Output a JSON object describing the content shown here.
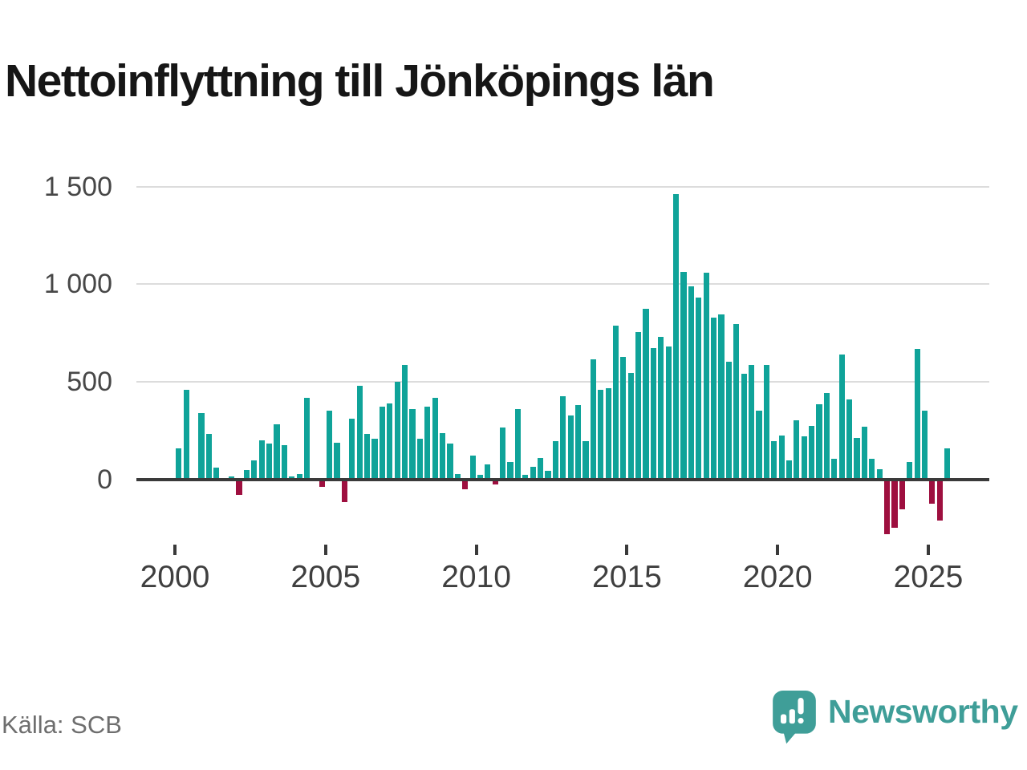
{
  "title": "Nettoinflyttning till Jönköpings län",
  "source": "Källa: SCB",
  "brand": {
    "name": "Newsworthy",
    "color": "#3f9e98"
  },
  "colors": {
    "positive": "#0fa399",
    "negative": "#9e0f3f",
    "axis": "#3a3a3a",
    "grid": "#dcdcdc"
  },
  "chart_data": {
    "type": "bar",
    "title": "Nettoinflyttning till Jönköpings län",
    "x_unit": "quarter",
    "y_ticks": [
      0,
      500,
      1000,
      1500
    ],
    "y_tick_labels": [
      "0",
      "500",
      "1 000",
      "1 500"
    ],
    "x_tick_years": [
      "2000",
      "2005",
      "2010",
      "2015",
      "2020",
      "2025"
    ],
    "ylim": [
      -300,
      1500
    ],
    "grid": "horizontal",
    "legend": "none",
    "years": [
      {
        "year": 2000,
        "values": [
          160,
          460,
          0,
          340
        ]
      },
      {
        "year": 2001,
        "values": [
          235,
          60,
          0,
          15
        ]
      },
      {
        "year": 2002,
        "values": [
          -80,
          50,
          100,
          200
        ]
      },
      {
        "year": 2003,
        "values": [
          185,
          285,
          175,
          15
        ]
      },
      {
        "year": 2004,
        "values": [
          30,
          420,
          0,
          -35
        ]
      },
      {
        "year": 2005,
        "values": [
          355,
          190,
          -115,
          310
        ]
      },
      {
        "year": 2006,
        "values": [
          480,
          235,
          210,
          375
        ]
      },
      {
        "year": 2007,
        "values": [
          390,
          500,
          585,
          360
        ]
      },
      {
        "year": 2008,
        "values": [
          210,
          375,
          420,
          240
        ]
      },
      {
        "year": 2009,
        "values": [
          185,
          30,
          -50,
          125
        ]
      },
      {
        "year": 2010,
        "values": [
          25,
          80,
          -25,
          265
        ]
      },
      {
        "year": 2011,
        "values": [
          90,
          360,
          25,
          65
        ]
      },
      {
        "year": 2012,
        "values": [
          110,
          45,
          195,
          425
        ]
      },
      {
        "year": 2013,
        "values": [
          330,
          380,
          195,
          615
        ]
      },
      {
        "year": 2014,
        "values": [
          460,
          470,
          790,
          630
        ]
      },
      {
        "year": 2015,
        "values": [
          545,
          755,
          875,
          675
        ]
      },
      {
        "year": 2016,
        "values": [
          730,
          680,
          1460,
          1065
        ]
      },
      {
        "year": 2017,
        "values": [
          990,
          930,
          1060,
          830
        ]
      },
      {
        "year": 2018,
        "values": [
          845,
          605,
          795,
          540
        ]
      },
      {
        "year": 2019,
        "values": [
          585,
          355,
          585,
          195
        ]
      },
      {
        "year": 2020,
        "values": [
          225,
          100,
          305,
          220
        ]
      },
      {
        "year": 2021,
        "values": [
          275,
          385,
          445,
          105
        ]
      },
      {
        "year": 2022,
        "values": [
          640,
          410,
          215,
          270
        ]
      },
      {
        "year": 2023,
        "values": [
          105,
          55,
          -280,
          -245
        ]
      },
      {
        "year": 2024,
        "values": [
          -150,
          90,
          670,
          355
        ]
      },
      {
        "year": 2025,
        "values": [
          -125,
          -210,
          160
        ]
      }
    ]
  }
}
